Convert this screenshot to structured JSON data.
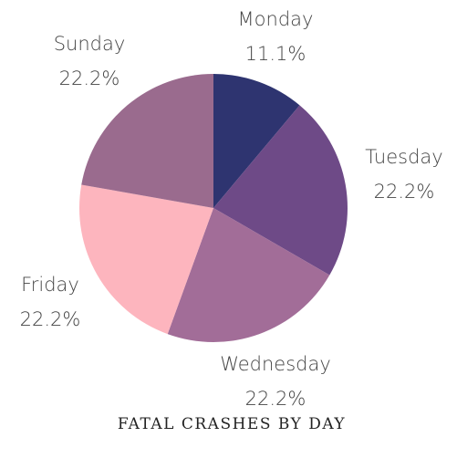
{
  "chart_data": {
    "type": "pie",
    "title": "FATAL CRASHES BY DAY",
    "categories": [
      "Monday",
      "Tuesday",
      "Wednesday",
      "Friday",
      "Sunday"
    ],
    "values": [
      11.1,
      22.2,
      22.2,
      22.2,
      22.2
    ],
    "value_labels": [
      "11.1%",
      "22.2%",
      "22.2%",
      "22.2%",
      "22.2%"
    ],
    "colors": [
      "#2e3470",
      "#6e4a87",
      "#a26d98",
      "#fdb5be",
      "#9a6b8e"
    ]
  }
}
